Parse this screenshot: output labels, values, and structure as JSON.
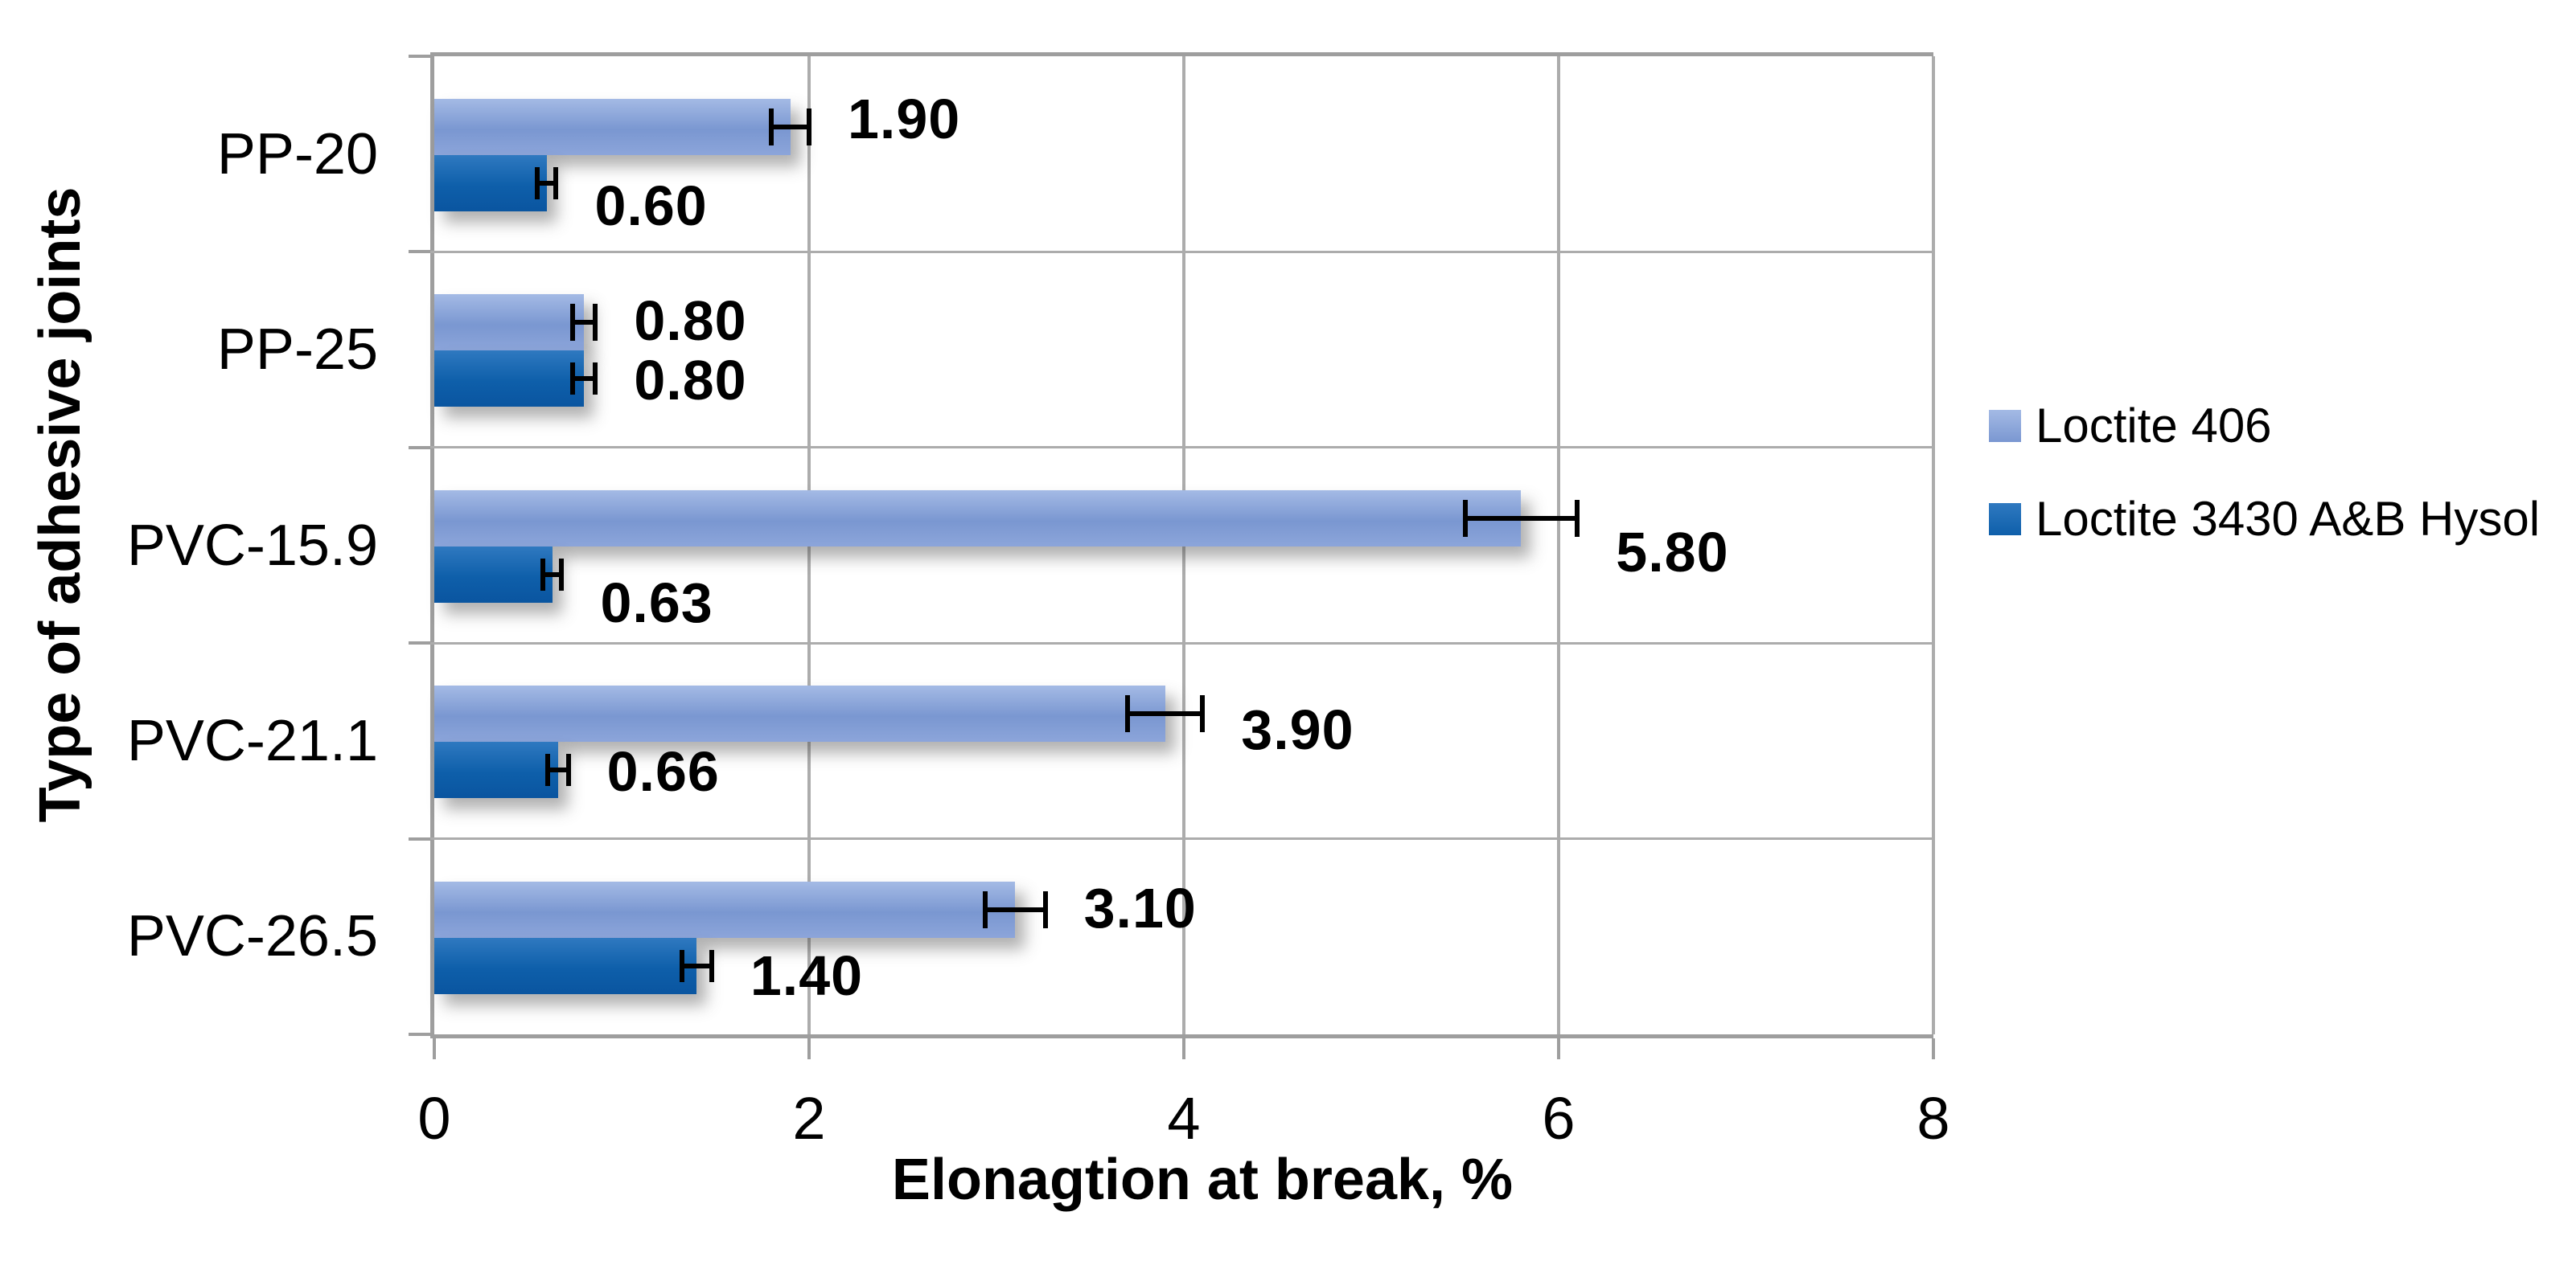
{
  "chart_data": {
    "type": "bar",
    "orientation": "horizontal",
    "title": "",
    "xlabel": "Elonagtion at break, %",
    "ylabel": "Type of adhesive joints",
    "xlim": [
      0,
      8
    ],
    "xticks": [
      0,
      2,
      4,
      6,
      8
    ],
    "xtick_labels": [
      "0",
      "2",
      "4",
      "6",
      "8"
    ],
    "grid": true,
    "legend_position": "right-middle",
    "categories": [
      "PP-20",
      "PP-25",
      "PVC-15.9",
      "PVC-21.1",
      "PVC-26.5"
    ],
    "series": [
      {
        "name": "Loctite 406",
        "values": [
          1.9,
          0.8,
          5.8,
          3.9,
          3.1
        ],
        "errors": [
          0.1,
          0.06,
          0.3,
          0.2,
          0.16
        ],
        "labels": [
          "1.90",
          "0.80",
          "5.80",
          "3.90",
          "3.10"
        ],
        "label_dy": [
          -10,
          -2,
          42,
          20,
          -2
        ],
        "color": "#7E9BD3",
        "gradient": [
          "#A4BAE5",
          "#7A97D1",
          "#8CA5DA"
        ]
      },
      {
        "name": "Loctite 3430 A&B Hysol",
        "values": [
          0.6,
          0.8,
          0.63,
          0.66,
          1.4
        ],
        "errors": [
          0.05,
          0.06,
          0.05,
          0.055,
          0.08
        ],
        "labels": [
          "0.60",
          "0.80",
          "0.63",
          "0.66",
          "1.40"
        ],
        "label_dy": [
          28,
          2,
          35,
          2,
          12
        ],
        "color": "#0E5FAA",
        "gradient": [
          "#2F79C0",
          "#0E5FAA",
          "#0A55A0"
        ]
      }
    ]
  },
  "colors": {
    "axis": "#9E9E9E",
    "gridline": "#ACACAC",
    "label_text": "#000000",
    "background": "#FFFFFF"
  }
}
